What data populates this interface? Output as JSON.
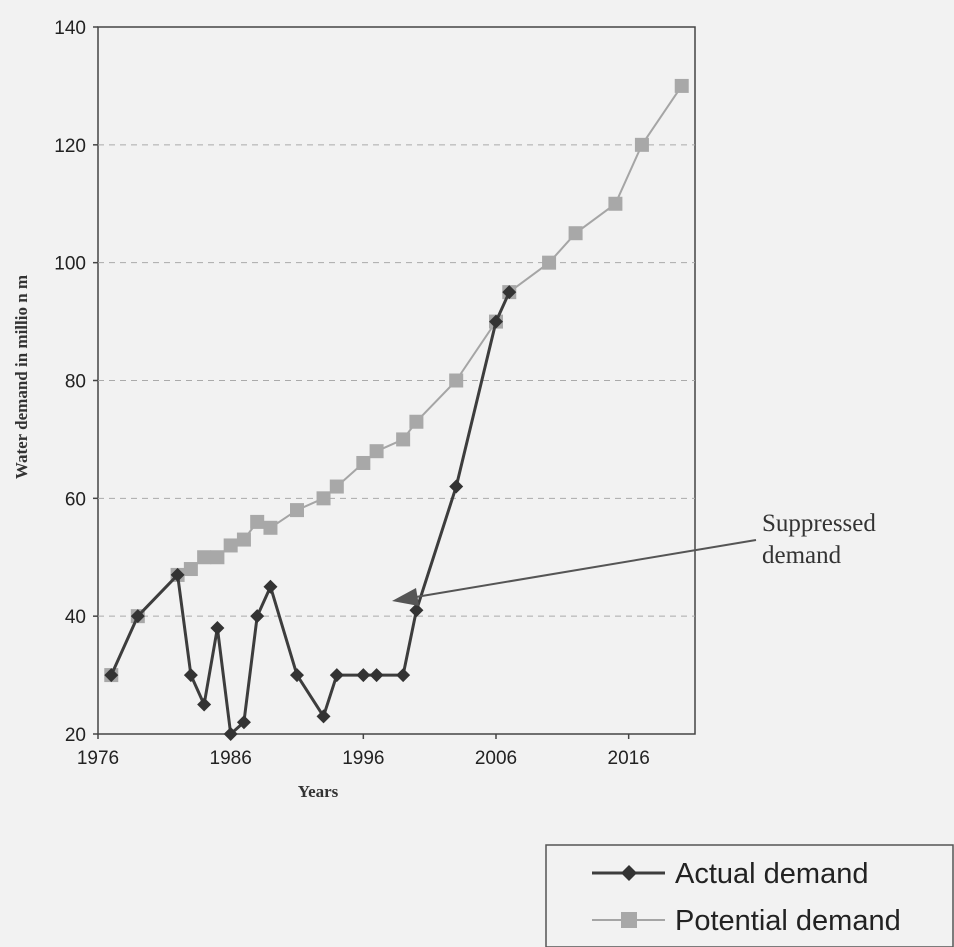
{
  "chart_data": {
    "type": "line",
    "xlabel": "Years",
    "ylabel": "Water demand in millio n m",
    "xlim": [
      1976,
      2021
    ],
    "ylim": [
      20,
      140
    ],
    "x_ticks": [
      "1976",
      "1986",
      "1996",
      "2006",
      "2016"
    ],
    "y_ticks": [
      "20",
      "40",
      "60",
      "80",
      "100",
      "120",
      "140"
    ],
    "grid": "horizontal dashed",
    "legend_position": "bottom-right",
    "annotation": {
      "lines": [
        "Suppressed",
        "demand"
      ],
      "points_to": [
        1999.5,
        43
      ]
    },
    "series": [
      {
        "name": "Actual demand",
        "color": "#3d3d3d",
        "marker": "diamond",
        "x": [
          1977,
          1979,
          1982,
          1983,
          1984,
          1985,
          1986,
          1987,
          1988,
          1989,
          1991,
          1993,
          1994,
          1996,
          1997,
          1999,
          2000,
          2003,
          2006,
          2007
        ],
        "y": [
          30,
          40,
          47,
          30,
          25,
          38,
          20,
          22,
          40,
          45,
          30,
          23,
          30,
          30,
          30,
          30,
          41,
          62,
          90,
          95
        ]
      },
      {
        "name": "Potential demand",
        "color": "#a5a5a5",
        "marker": "square",
        "x": [
          1977,
          1979,
          1982,
          1983,
          1984,
          1985,
          1986,
          1987,
          1988,
          1989,
          1991,
          1993,
          1994,
          1996,
          1997,
          1999,
          2000,
          2003,
          2006,
          2007,
          2010,
          2012,
          2015,
          2017,
          2020
        ],
        "y": [
          30,
          40,
          47,
          48,
          50,
          50,
          52,
          53,
          56,
          55,
          58,
          60,
          62,
          66,
          68,
          70,
          73,
          80,
          90,
          95,
          100,
          105,
          110,
          120,
          130
        ]
      }
    ]
  }
}
